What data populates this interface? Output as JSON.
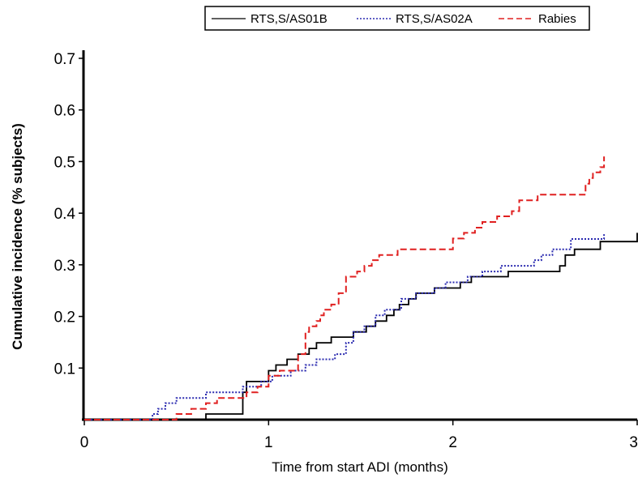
{
  "chart_data": {
    "type": "line",
    "title": "",
    "xlabel": "Time from start ADI (months)",
    "ylabel": "Cumulative incidence (% subjects)",
    "xlim": [
      0,
      3
    ],
    "ylim": [
      0,
      0.7
    ],
    "x_ticks": [
      "0",
      "1",
      "2",
      "3"
    ],
    "y_ticks": [
      "0.1",
      "0.2",
      "0.3",
      "0.4",
      "0.5",
      "0.6",
      "0.7"
    ],
    "grid": false,
    "legend_position": "top",
    "series": [
      {
        "name": "RTS,S/AS01B",
        "color": "#000000",
        "style": "solid",
        "x": [
          0,
          0.66,
          0.66,
          0.86,
          0.86,
          0.88,
          0.88,
          1.0,
          1.0,
          1.04,
          1.04,
          1.1,
          1.1,
          1.16,
          1.16,
          1.22,
          1.22,
          1.26,
          1.26,
          1.34,
          1.34,
          1.46,
          1.46,
          1.53,
          1.53,
          1.58,
          1.58,
          1.64,
          1.64,
          1.68,
          1.68,
          1.71,
          1.71,
          1.76,
          1.76,
          1.8,
          1.8,
          1.86,
          1.86,
          1.9,
          1.9,
          2.04,
          2.04,
          2.1,
          2.1,
          2.3,
          2.3,
          2.58,
          2.58,
          2.61,
          2.61,
          2.66,
          2.66,
          2.8,
          2.8,
          3.0,
          3.0
        ],
        "y": [
          0,
          0,
          0.011,
          0.011,
          0.053,
          0.053,
          0.074,
          0.074,
          0.095,
          0.095,
          0.106,
          0.106,
          0.117,
          0.117,
          0.127,
          0.127,
          0.138,
          0.138,
          0.149,
          0.149,
          0.16,
          0.16,
          0.17,
          0.17,
          0.181,
          0.181,
          0.191,
          0.191,
          0.202,
          0.202,
          0.213,
          0.213,
          0.223,
          0.223,
          0.234,
          0.234,
          0.245,
          0.245,
          0.245,
          0.245,
          0.255,
          0.255,
          0.266,
          0.266,
          0.277,
          0.277,
          0.287,
          0.287,
          0.298,
          0.298,
          0.319,
          0.319,
          0.33,
          0.33,
          0.345,
          0.345,
          0.362
        ]
      },
      {
        "name": "RTS,S/AS02A",
        "color": "#2b2bb0",
        "style": "dotted",
        "x": [
          0,
          0.37,
          0.37,
          0.4,
          0.4,
          0.44,
          0.44,
          0.5,
          0.5,
          0.66,
          0.66,
          0.8,
          0.8,
          0.86,
          0.86,
          0.96,
          0.96,
          1.02,
          1.02,
          1.12,
          1.12,
          1.2,
          1.2,
          1.26,
          1.26,
          1.36,
          1.36,
          1.42,
          1.42,
          1.46,
          1.46,
          1.52,
          1.52,
          1.58,
          1.58,
          1.63,
          1.63,
          1.72,
          1.72,
          1.8,
          1.8,
          1.9,
          1.9,
          1.96,
          1.96,
          2.08,
          2.08,
          2.16,
          2.16,
          2.26,
          2.26,
          2.44,
          2.44,
          2.48,
          2.48,
          2.54,
          2.54,
          2.64,
          2.64,
          2.82,
          2.82
        ],
        "y": [
          0,
          0,
          0.011,
          0.011,
          0.021,
          0.021,
          0.032,
          0.032,
          0.042,
          0.042,
          0.053,
          0.053,
          0.053,
          0.053,
          0.064,
          0.064,
          0.074,
          0.074,
          0.085,
          0.085,
          0.095,
          0.095,
          0.106,
          0.106,
          0.117,
          0.117,
          0.127,
          0.127,
          0.149,
          0.149,
          0.17,
          0.17,
          0.181,
          0.181,
          0.202,
          0.202,
          0.213,
          0.213,
          0.234,
          0.234,
          0.245,
          0.245,
          0.255,
          0.255,
          0.266,
          0.266,
          0.277,
          0.277,
          0.287,
          0.287,
          0.298,
          0.298,
          0.309,
          0.309,
          0.319,
          0.319,
          0.33,
          0.33,
          0.35,
          0.35,
          0.362
        ]
      },
      {
        "name": "Rabies",
        "color": "#e02020",
        "style": "dashed",
        "x": [
          0,
          0.5,
          0.5,
          0.58,
          0.58,
          0.66,
          0.66,
          0.72,
          0.72,
          0.88,
          0.88,
          0.94,
          0.94,
          1.0,
          1.0,
          1.06,
          1.06,
          1.1,
          1.1,
          1.16,
          1.16,
          1.2,
          1.2,
          1.22,
          1.22,
          1.26,
          1.26,
          1.28,
          1.28,
          1.3,
          1.3,
          1.34,
          1.34,
          1.38,
          1.38,
          1.42,
          1.42,
          1.48,
          1.48,
          1.52,
          1.52,
          1.56,
          1.56,
          1.6,
          1.6,
          1.64,
          1.64,
          1.7,
          1.7,
          1.76,
          1.76,
          1.9,
          1.9,
          2.0,
          2.0,
          2.06,
          2.06,
          2.12,
          2.12,
          2.16,
          2.16,
          2.24,
          2.24,
          2.32,
          2.32,
          2.36,
          2.36,
          2.46,
          2.46,
          2.72,
          2.72,
          2.74,
          2.74,
          2.76,
          2.76,
          2.8,
          2.8,
          2.82,
          2.82
        ],
        "y": [
          0,
          0,
          0.011,
          0.011,
          0.021,
          0.021,
          0.032,
          0.032,
          0.042,
          0.042,
          0.053,
          0.053,
          0.064,
          0.064,
          0.085,
          0.085,
          0.095,
          0.095,
          0.095,
          0.095,
          0.127,
          0.127,
          0.17,
          0.17,
          0.181,
          0.181,
          0.191,
          0.191,
          0.202,
          0.202,
          0.213,
          0.213,
          0.223,
          0.223,
          0.245,
          0.245,
          0.277,
          0.277,
          0.287,
          0.287,
          0.298,
          0.298,
          0.309,
          0.309,
          0.319,
          0.319,
          0.319,
          0.319,
          0.33,
          0.33,
          0.33,
          0.33,
          0.33,
          0.33,
          0.351,
          0.351,
          0.362,
          0.362,
          0.372,
          0.372,
          0.383,
          0.383,
          0.394,
          0.394,
          0.404,
          0.404,
          0.425,
          0.425,
          0.436,
          0.436,
          0.457,
          0.457,
          0.468,
          0.468,
          0.479,
          0.479,
          0.489,
          0.489,
          0.51
        ]
      }
    ]
  }
}
